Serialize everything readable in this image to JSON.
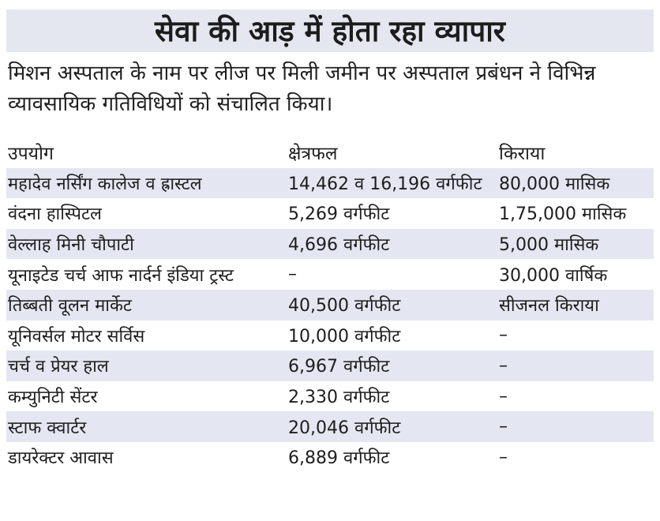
{
  "headline": "सेवा की आड़ में होता रहा व्यापार",
  "intro": "मिशन अस्पताल के नाम पर लीज पर मिली जमीन पर अस्पताल प्रबंधन ने विभिन्न व्यावसायिक गतिविधियों को संचालित किया।",
  "table": {
    "headers": [
      "उपयोग",
      "क्षेत्रफल",
      "किराया"
    ],
    "rows": [
      [
        "महादेव नर्सिंग कालेज व ह्रास्टल",
        "14,462 व 16,196 वर्गफीट",
        "80,000 मासिक"
      ],
      [
        "वंदना हास्पिटल",
        "5,269 वर्गफीट",
        "1,75,000 मासिक"
      ],
      [
        "वेल्लाह मिनी चौपाटी",
        "4,696 वर्गफीट",
        "5,000 मासिक"
      ],
      [
        "यूनाइटेड चर्च आफ नार्दर्न इंडिया ट्रस्ट",
        "–",
        "30,000 वार्षिक"
      ],
      [
        "तिब्बती वूलन मार्केट",
        "40,500 वर्गफीट",
        "सीजनल किराया"
      ],
      [
        "यूनिवर्सल मोटर सर्विस",
        "10,000 वर्गफीट",
        "–"
      ],
      [
        "चर्च व प्रेयर हाल",
        "6,967 वर्गफीट",
        "–"
      ],
      [
        "कम्युनिटी सेंटर",
        "2,330 वर्गफीट",
        "–"
      ],
      [
        "स्टाफ क्वार्टर",
        "20,046 वर्गफीट",
        "–"
      ],
      [
        "डायरेक्टर आवास",
        "6,889 वर्गफीट",
        "–"
      ]
    ]
  },
  "colors": {
    "band": "#e4e7f1",
    "text": "#1d1d1d"
  }
}
